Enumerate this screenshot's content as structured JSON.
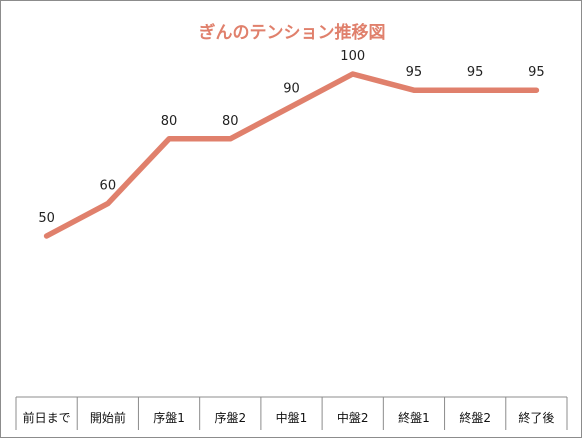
{
  "chart_data": {
    "type": "line",
    "title": "ぎんのテンション推移図",
    "categories": [
      "前日まで",
      "開始前",
      "序盤1",
      "序盤2",
      "中盤1",
      "中盤2",
      "終盤1",
      "終盤2",
      "終了後"
    ],
    "series": [
      {
        "values": [
          50,
          60,
          80,
          80,
          90,
          100,
          95,
          95,
          95
        ]
      }
    ],
    "ylim": [
      0,
      110
    ],
    "grid": false,
    "legend": "none",
    "line_color": "#e0806c",
    "title_color": "#e0806c",
    "data_labels": true
  }
}
